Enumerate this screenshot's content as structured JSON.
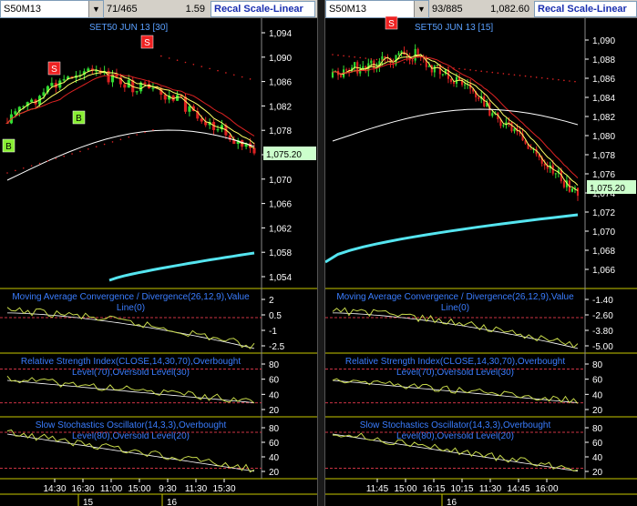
{
  "left": {
    "symbol": "S50M13",
    "count": "71/465",
    "price": "1.59",
    "recal_label": "Recal Scale-Linear",
    "chart_title": "SET50 JUN 13   [30]",
    "price_ticks": [
      "1,094",
      "1,090",
      "1,086",
      "1,082",
      "1,078",
      "1,074",
      "1,070",
      "1,066",
      "1,062",
      "1,058",
      "1,054"
    ],
    "last_price": "1,075.20",
    "macd_title": "Moving Average Convergence / Divergence(26,12,9),Value",
    "macd_title2": "Line(0)",
    "macd_ticks": [
      "2",
      "0.5",
      "-1",
      "-2.5"
    ],
    "rsi_title": "Relative Strength Index(CLOSE,14,30,70),Overbought",
    "rsi_title2": "Level(70),Oversold Level(30)",
    "rsi_ticks": [
      "80",
      "60",
      "40",
      "20"
    ],
    "stoch_title": "Slow Stochastics Oscillator(14,3,3),Overbought",
    "stoch_title2": "Level(80),Oversold Level(20)",
    "stoch_ticks": [
      "80",
      "60",
      "40",
      "20"
    ],
    "time_labels": [
      "14:30",
      "16:30",
      "11:00",
      "15:00",
      "9:30",
      "11:30",
      "15:30"
    ],
    "date_labels": [
      "15",
      "16"
    ],
    "signals": [
      "B",
      "S",
      "B",
      "S"
    ]
  },
  "right": {
    "symbol": "S50M13",
    "count": "93/885",
    "price": "1,082.60",
    "recal_label": "Recal Scale-Linear",
    "chart_title": "SET50 JUN 13   [15]",
    "price_ticks": [
      "1,090",
      "1,088",
      "1,086",
      "1,084",
      "1,082",
      "1,080",
      "1,078",
      "1,076",
      "1,074",
      "1,072",
      "1,070",
      "1,068",
      "1,066"
    ],
    "last_price": "1,075.20",
    "macd_title": "Moving Average Convergence / Divergence(26,12,9),Value",
    "macd_title2": "Line(0)",
    "macd_ticks": [
      "-1.40",
      "-2.60",
      "-3.80",
      "-5.00"
    ],
    "rsi_title": "Relative Strength Index(CLOSE,14,30,70),Overbought",
    "rsi_title2": "Level(70),Oversold Level(30)",
    "rsi_ticks": [
      "80",
      "60",
      "40",
      "20"
    ],
    "stoch_title": "Slow Stochastics Oscillator(14,3,3),Overbought",
    "stoch_title2": "Level(80),Oversold Level(20)",
    "stoch_ticks": [
      "80",
      "60",
      "40",
      "20"
    ],
    "time_labels": [
      "11:45",
      "15:00",
      "16:15",
      "10:15",
      "11:30",
      "14:45",
      "16:00"
    ],
    "date_labels": [
      "16"
    ],
    "signals": [
      "S"
    ]
  },
  "colors": {
    "candle_up": "#33dd33",
    "candle_down": "#dd2222",
    "ma_fast": "#ffff66",
    "ma_mid": "#dd2222",
    "ma_slow": "#ffffff",
    "ma_long": "#55e5f0",
    "osc_line": "#c6d84a",
    "signal_line": "#ffffff",
    "level_line": "#cc3344",
    "last_price_bg": "#ccffcc",
    "buy_marker": "#88ee33",
    "sell_marker": "#ee2222"
  }
}
